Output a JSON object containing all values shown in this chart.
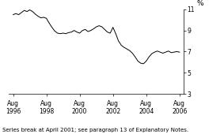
{
  "ylabel": "%",
  "ylabel_fontsize": 6.5,
  "ylim": [
    3,
    11
  ],
  "yticks": [
    3,
    5,
    7,
    9,
    11
  ],
  "xtick_labels": [
    "Aug\n1996",
    "Aug\n1998",
    "Aug\n2000",
    "Aug\n2002",
    "Aug\n2004",
    "Aug\n2006"
  ],
  "xtick_positions": [
    0,
    24,
    48,
    72,
    96,
    120
  ],
  "footnote": "Series break at April 2001; see paragraph 13 of Explanatory Notes.",
  "footnote_fontsize": 5.0,
  "line_color": "#000000",
  "line_width": 0.7,
  "tick_fontsize": 5.5,
  "data_x": [
    0,
    2,
    4,
    6,
    8,
    10,
    12,
    14,
    16,
    18,
    20,
    22,
    24,
    26,
    28,
    30,
    32,
    34,
    36,
    38,
    40,
    42,
    44,
    46,
    48,
    50,
    52,
    54,
    56,
    58,
    60,
    62,
    64,
    66,
    68,
    70,
    72,
    74,
    76,
    78,
    80,
    82,
    84,
    86,
    88,
    90,
    92,
    94,
    96,
    98,
    100,
    102,
    104,
    106,
    108,
    110,
    112,
    114,
    116,
    118,
    120
  ],
  "data_y": [
    10.5,
    10.6,
    10.5,
    10.7,
    10.9,
    10.8,
    10.95,
    10.8,
    10.55,
    10.35,
    10.2,
    10.25,
    10.15,
    9.7,
    9.3,
    8.95,
    8.75,
    8.7,
    8.75,
    8.7,
    8.8,
    8.85,
    9.0,
    8.85,
    8.75,
    9.0,
    9.1,
    8.9,
    9.0,
    9.15,
    9.35,
    9.45,
    9.35,
    9.1,
    8.85,
    8.75,
    9.3,
    8.7,
    8.0,
    7.6,
    7.4,
    7.25,
    7.1,
    6.85,
    6.5,
    6.1,
    5.9,
    5.85,
    6.1,
    6.5,
    6.8,
    6.95,
    7.05,
    6.95,
    6.85,
    6.95,
    7.05,
    6.9,
    6.95,
    7.0,
    6.95
  ]
}
